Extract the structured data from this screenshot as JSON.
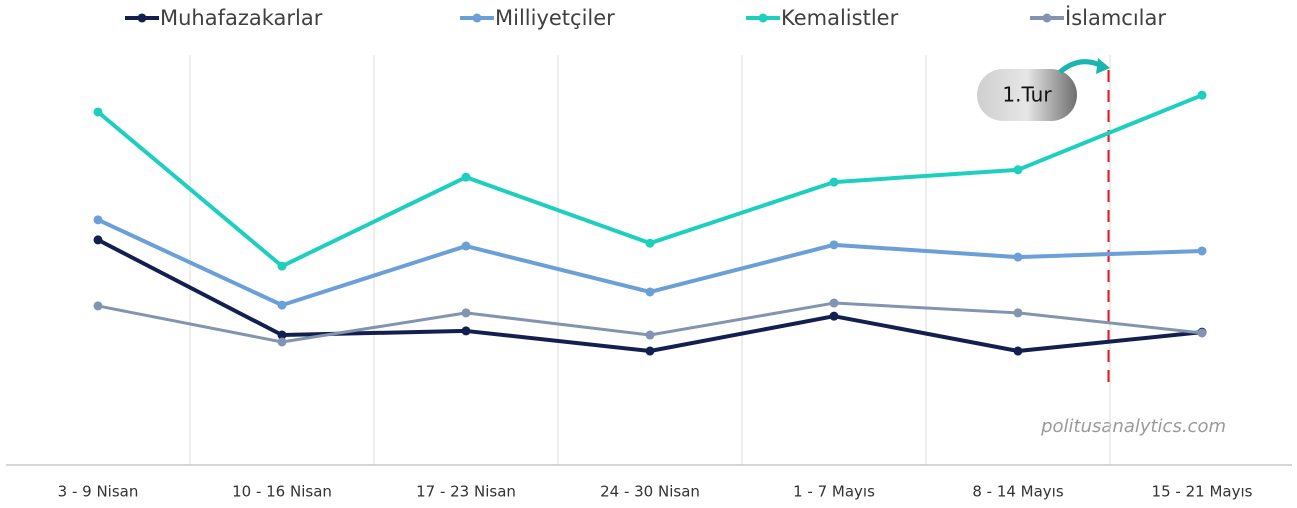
{
  "chart_data": {
    "type": "line",
    "categories": [
      "3 - 9 Nisan",
      "10 - 16 Nisan",
      "17 - 23 Nisan",
      "24 - 30 Nisan",
      "1 - 7 Mayıs",
      "8 - 14 Mayıs",
      "15 - 21 Mayıs"
    ],
    "series": [
      {
        "name": "Muhafazakarlar",
        "color": "#13204f",
        "values": [
          54.9,
          31.7,
          32.7,
          27.8,
          36.3,
          27.8,
          32.4
        ]
      },
      {
        "name": "Milliyetçiler",
        "color": "#6a9fd8",
        "values": [
          59.8,
          39.0,
          53.4,
          42.2,
          53.7,
          50.7,
          52.2
        ]
      },
      {
        "name": "Kemalistler",
        "color": "#1ccfbf",
        "values": [
          86.1,
          48.5,
          70.2,
          54.1,
          69.0,
          72.0,
          90.2
        ]
      },
      {
        "name": "İslamcılar",
        "color": "#8394b0",
        "values": [
          38.8,
          30.0,
          37.1,
          31.7,
          39.5,
          37.1,
          32.2
        ]
      }
    ],
    "ylim": [
      0,
      100
    ],
    "grid": true,
    "annotation": "1.Tur",
    "source": "politusanalytics.com"
  }
}
